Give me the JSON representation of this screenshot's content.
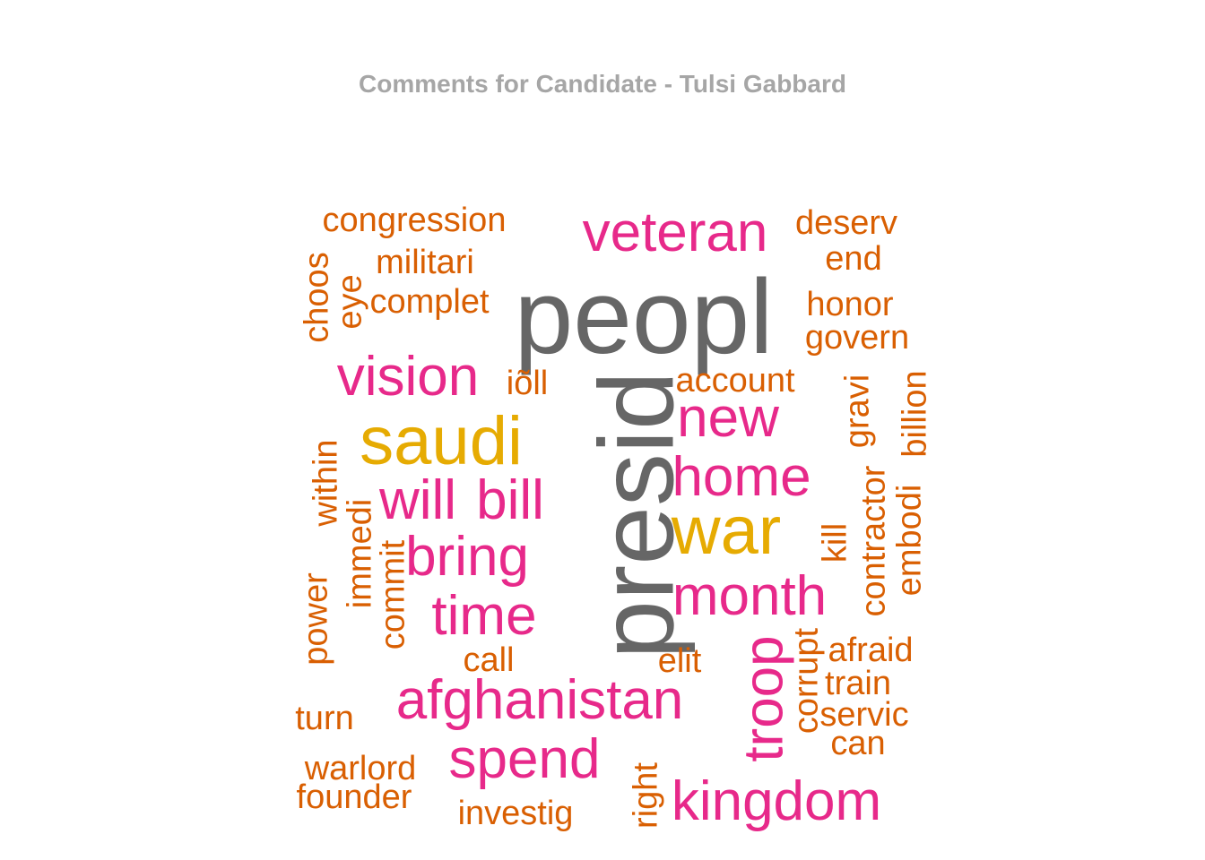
{
  "chart_data": {
    "type": "wordcloud",
    "title": "Comments for Candidate - Tulsi Gabbard",
    "title_color": "#a6a6a6",
    "color_scale": {
      "tier1": "#666666",
      "tier2": "#e6ab02",
      "tier3": "#e7298a",
      "tier4": "#d95f02"
    },
    "words": [
      {
        "text": "peopl",
        "weight": 10,
        "tier": "tier1"
      },
      {
        "text": "presid",
        "weight": 10,
        "tier": "tier1"
      },
      {
        "text": "saudi",
        "weight": 7,
        "tier": "tier2"
      },
      {
        "text": "war",
        "weight": 7,
        "tier": "tier2"
      },
      {
        "text": "veteran",
        "weight": 5,
        "tier": "tier3"
      },
      {
        "text": "vision",
        "weight": 5,
        "tier": "tier3"
      },
      {
        "text": "new",
        "weight": 5,
        "tier": "tier3"
      },
      {
        "text": "home",
        "weight": 5,
        "tier": "tier3"
      },
      {
        "text": "will",
        "weight": 5,
        "tier": "tier3"
      },
      {
        "text": "bill",
        "weight": 5,
        "tier": "tier3"
      },
      {
        "text": "bring",
        "weight": 5,
        "tier": "tier3"
      },
      {
        "text": "time",
        "weight": 5,
        "tier": "tier3"
      },
      {
        "text": "month",
        "weight": 5,
        "tier": "tier3"
      },
      {
        "text": "afghanistan",
        "weight": 5,
        "tier": "tier3"
      },
      {
        "text": "troop",
        "weight": 5,
        "tier": "tier3"
      },
      {
        "text": "spend",
        "weight": 5,
        "tier": "tier3"
      },
      {
        "text": "kingdom",
        "weight": 5,
        "tier": "tier3"
      },
      {
        "text": "congression",
        "weight": 3,
        "tier": "tier4"
      },
      {
        "text": "deserv",
        "weight": 3,
        "tier": "tier4"
      },
      {
        "text": "end",
        "weight": 3,
        "tier": "tier4"
      },
      {
        "text": "militari",
        "weight": 3,
        "tier": "tier4"
      },
      {
        "text": "choos",
        "weight": 3,
        "tier": "tier4"
      },
      {
        "text": "eye",
        "weight": 3,
        "tier": "tier4"
      },
      {
        "text": "complet",
        "weight": 3,
        "tier": "tier4"
      },
      {
        "text": "honor",
        "weight": 3,
        "tier": "tier4"
      },
      {
        "text": "govern",
        "weight": 3,
        "tier": "tier4"
      },
      {
        "text": "iõll",
        "weight": 3,
        "tier": "tier4"
      },
      {
        "text": "account",
        "weight": 3,
        "tier": "tier4"
      },
      {
        "text": "gravi",
        "weight": 3,
        "tier": "tier4"
      },
      {
        "text": "billion",
        "weight": 3,
        "tier": "tier4"
      },
      {
        "text": "within",
        "weight": 3,
        "tier": "tier4"
      },
      {
        "text": "immedi",
        "weight": 3,
        "tier": "tier4"
      },
      {
        "text": "commit",
        "weight": 3,
        "tier": "tier4"
      },
      {
        "text": "power",
        "weight": 3,
        "tier": "tier4"
      },
      {
        "text": "contractor",
        "weight": 3,
        "tier": "tier4"
      },
      {
        "text": "embodi",
        "weight": 3,
        "tier": "tier4"
      },
      {
        "text": "kill",
        "weight": 3,
        "tier": "tier4"
      },
      {
        "text": "corrupt",
        "weight": 3,
        "tier": "tier4"
      },
      {
        "text": "afraid",
        "weight": 3,
        "tier": "tier4"
      },
      {
        "text": "train",
        "weight": 3,
        "tier": "tier4"
      },
      {
        "text": "servic",
        "weight": 3,
        "tier": "tier4"
      },
      {
        "text": "can",
        "weight": 3,
        "tier": "tier4"
      },
      {
        "text": "call",
        "weight": 3,
        "tier": "tier4"
      },
      {
        "text": "elit",
        "weight": 3,
        "tier": "tier4"
      },
      {
        "text": "turn",
        "weight": 3,
        "tier": "tier4"
      },
      {
        "text": "warlord",
        "weight": 3,
        "tier": "tier4"
      },
      {
        "text": "founder",
        "weight": 3,
        "tier": "tier4"
      },
      {
        "text": "investig",
        "weight": 3,
        "tier": "tier4"
      },
      {
        "text": "right",
        "weight": 3,
        "tier": "tier4"
      }
    ]
  }
}
